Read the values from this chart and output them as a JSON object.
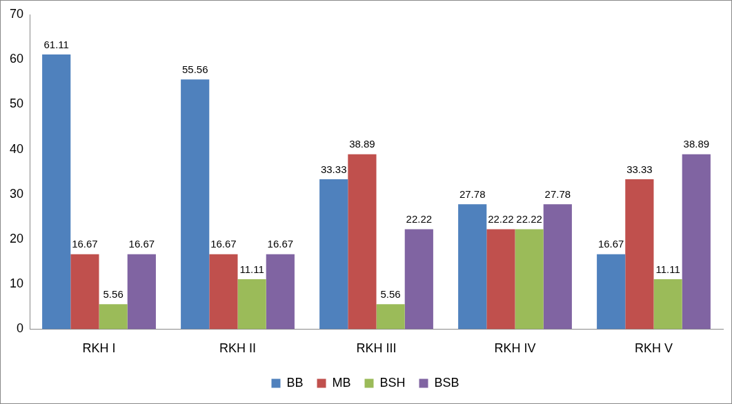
{
  "chart_data": {
    "type": "bar",
    "categories": [
      "RKH I",
      "RKH II",
      "RKH III",
      "RKH IV",
      "RKH V"
    ],
    "series": [
      {
        "name": "BB",
        "color": "#4f81bd",
        "values": [
          61.11,
          55.56,
          33.33,
          27.78,
          16.67
        ]
      },
      {
        "name": "MB",
        "color": "#c0504d",
        "values": [
          16.67,
          16.67,
          38.89,
          22.22,
          33.33
        ]
      },
      {
        "name": "BSH",
        "color": "#9bbb59",
        "values": [
          5.56,
          11.11,
          5.56,
          22.22,
          11.11
        ]
      },
      {
        "name": "BSB",
        "color": "#8064a2",
        "values": [
          16.67,
          16.67,
          22.22,
          27.78,
          38.89
        ]
      }
    ],
    "ylim": [
      0,
      70
    ],
    "yticks": [
      0,
      10,
      20,
      30,
      40,
      50,
      60,
      70
    ],
    "grid": false,
    "legend": "bottom",
    "data_labels": true
  }
}
